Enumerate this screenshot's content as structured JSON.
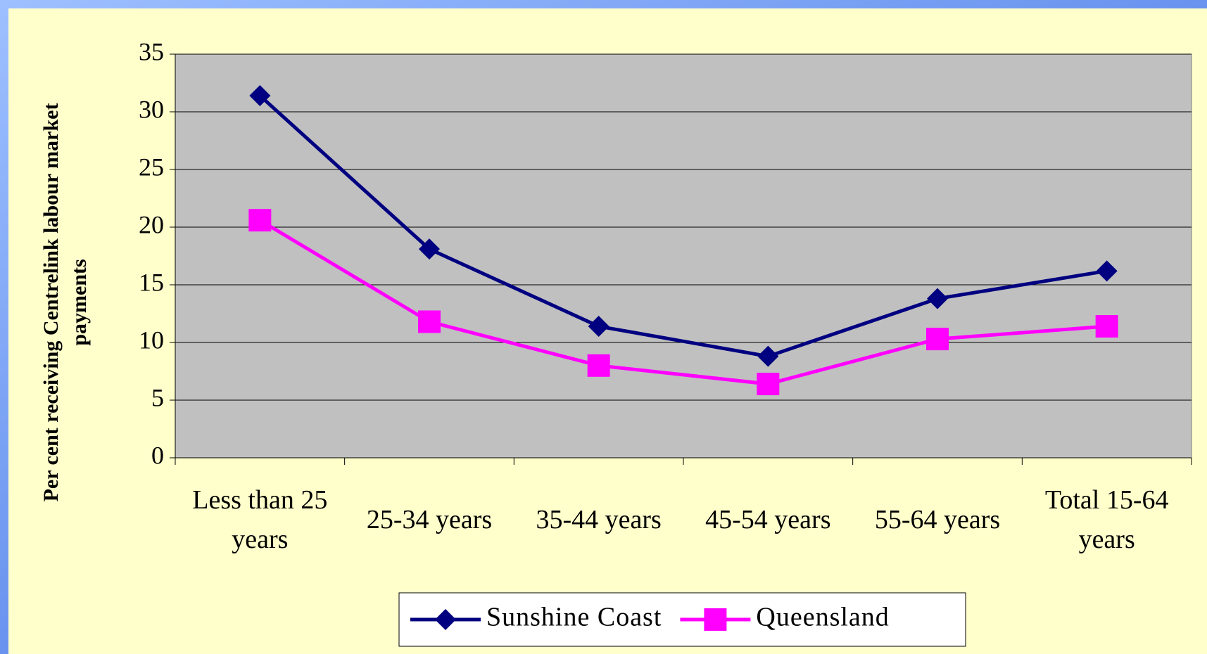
{
  "chart_data": {
    "type": "line",
    "y_label": "Per cent receiving Centrelink labour market payments",
    "categories": [
      "Less than 25 years",
      "25-34 years",
      "35-44 years",
      "45-54 years",
      "55-64 years",
      "Total 15-64 years"
    ],
    "series": [
      {
        "name": "Sunshine Coast",
        "color": "#000080",
        "marker": "diamond",
        "values": [
          31.4,
          18.1,
          11.4,
          8.8,
          13.8,
          16.2
        ]
      },
      {
        "name": "Queensland",
        "color": "#ff00ff",
        "marker": "square",
        "values": [
          20.6,
          11.8,
          8.0,
          6.4,
          10.3,
          11.4
        ]
      }
    ],
    "ylim": [
      0,
      35
    ],
    "yticks": [
      0,
      5,
      10,
      15,
      20,
      25,
      30,
      35
    ],
    "grid": true,
    "legend": "bottom"
  }
}
